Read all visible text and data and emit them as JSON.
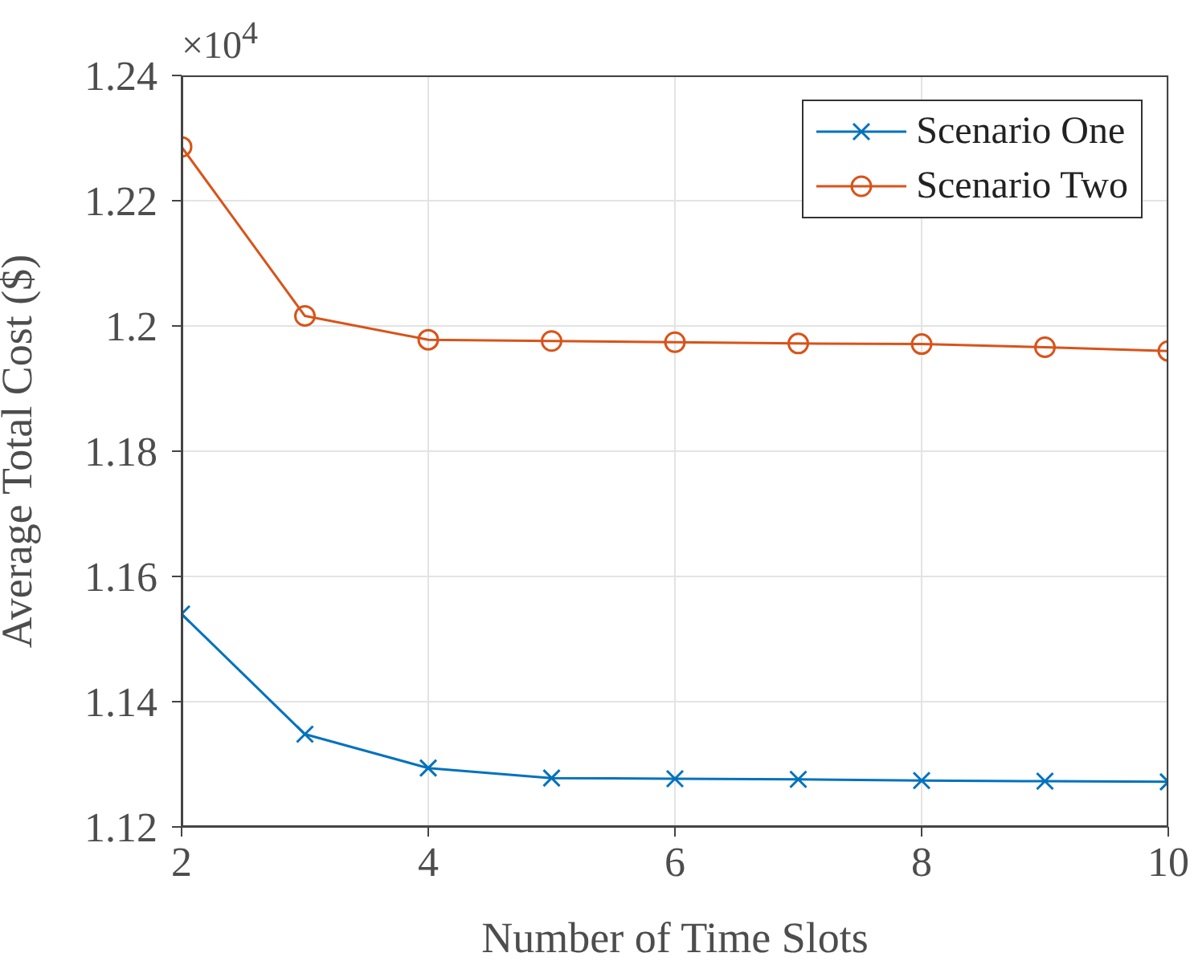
{
  "chart_data": {
    "type": "line",
    "xlabel": "Number of Time Slots",
    "ylabel": "Average Total Cost ($)",
    "annotations": [
      "×10$^{4}$"
    ],
    "x": [
      2,
      3,
      4,
      5,
      6,
      7,
      8,
      9,
      10
    ],
    "series": [
      {
        "name": "Scenario One",
        "color": "#0072bd",
        "marker": "cross",
        "values": [
          1.154,
          1.1348,
          1.1294,
          1.1278,
          1.1277,
          1.1276,
          1.1274,
          1.1273,
          1.1272
        ]
      },
      {
        "name": "Scenario Two",
        "color": "#d95319",
        "marker": "circle",
        "values": [
          1.2286,
          1.2016,
          1.1978,
          1.1976,
          1.1974,
          1.1972,
          1.1971,
          1.1966,
          1.196
        ]
      }
    ],
    "xlim": [
      2,
      10
    ],
    "xticks": [
      2,
      4,
      6,
      8,
      10
    ],
    "ylim": [
      1.12,
      1.24
    ],
    "yticks": [
      1.12,
      1.14,
      1.16,
      1.18,
      1.2,
      1.22,
      1.24
    ],
    "grid": true,
    "legend": "top right",
    "line_style": "solid"
  }
}
